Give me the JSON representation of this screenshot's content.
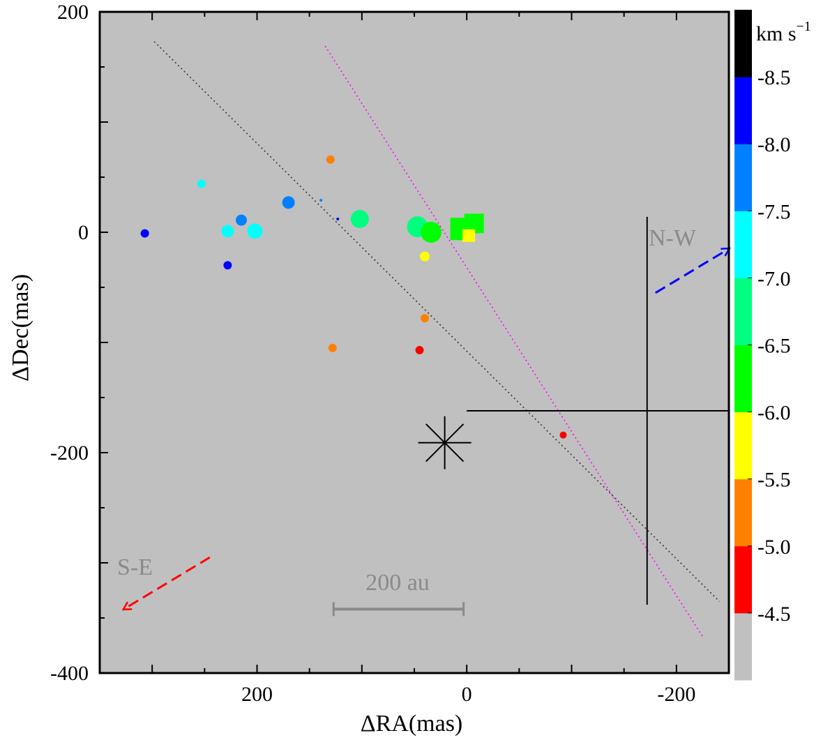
{
  "chart_data": {
    "type": "scatter",
    "xlabel": "ΔRA(mas)",
    "ylabel": "ΔDec(mas)",
    "xlim": [
      350,
      -250
    ],
    "ylim": [
      -400,
      200
    ],
    "x_ticks": [
      200,
      0,
      -200
    ],
    "y_ticks": [
      200,
      0,
      -200,
      -400
    ],
    "x_tick_labels": [
      "200",
      "0",
      "-200"
    ],
    "y_tick_labels": [
      "200",
      "0",
      "-200",
      "-400"
    ],
    "background_color": "#c0c0c0",
    "colorbar": {
      "unit_base": "km s",
      "unit_exp": "−1",
      "levels": [
        -4.5,
        -5.0,
        -5.5,
        -6.0,
        -6.5,
        -7.0,
        -7.5,
        -8.0,
        -8.5
      ],
      "labels": [
        "-4.5",
        "-5.0",
        "-5.5",
        "-6.0",
        "-6.5",
        "-7.0",
        "-7.5",
        "-8.0",
        "-8.5"
      ],
      "bins": [
        {
          "color": "#c0c0c0",
          "label": "< -4.5"
        },
        {
          "color": "#ff0000",
          "label": "-5.0 to -4.5"
        },
        {
          "color": "#ff8000",
          "label": "-5.5 to -5.0"
        },
        {
          "color": "#ffff00",
          "label": "-6.0 to -5.5"
        },
        {
          "color": "#00ff00",
          "label": "-6.5 to -6.0"
        },
        {
          "color": "#00ff80",
          "label": "-7.0 to -6.5"
        },
        {
          "color": "#00ffff",
          "label": "-7.5 to -7.0"
        },
        {
          "color": "#0080ff",
          "label": "-8.0 to -7.5"
        },
        {
          "color": "#0000ff",
          "label": "-8.5 to -8.0"
        },
        {
          "color": "#000000",
          "label": "> -8.5"
        }
      ]
    },
    "spots": [
      {
        "x": 307,
        "y": -1,
        "color": "#0000ff",
        "size": 6
      },
      {
        "x": 253,
        "y": 44,
        "color": "#00ffff",
        "size": 6
      },
      {
        "x": 228,
        "y": 1,
        "color": "#00ffff",
        "size": 9
      },
      {
        "x": 228,
        "y": -30,
        "color": "#0000ff",
        "size": 6
      },
      {
        "x": 215,
        "y": 11,
        "color": "#0080ff",
        "size": 8
      },
      {
        "x": 202,
        "y": 1,
        "color": "#00ffff",
        "size": 11
      },
      {
        "x": 170,
        "y": 27,
        "color": "#0080ff",
        "size": 9
      },
      {
        "x": 139,
        "y": 29,
        "color": "#0080ff",
        "size": 2
      },
      {
        "x": 130,
        "y": 66,
        "color": "#ff8000",
        "size": 6
      },
      {
        "x": 123,
        "y": 12,
        "color": "#0000ff",
        "size": 2
      },
      {
        "x": 102,
        "y": 12,
        "color": "#00ff80",
        "size": 13
      },
      {
        "x": 47,
        "y": 5,
        "color": "#00ff80",
        "size": 15
      },
      {
        "x": 34,
        "y": 0,
        "color": "#00ff00",
        "size": 15
      },
      {
        "x": 40,
        "y": -22,
        "color": "#ffff00",
        "size": 7
      },
      {
        "x": 40,
        "y": -78,
        "color": "#ff8000",
        "size": 6
      },
      {
        "x": 128,
        "y": -105,
        "color": "#ff8000",
        "size": 6
      },
      {
        "x": 45,
        "y": -107,
        "color": "#ff0000",
        "size": 6
      },
      {
        "x": -92,
        "y": -184,
        "color": "#ff0000",
        "size": 5
      }
    ],
    "squares": [
      {
        "x": 5,
        "y": 3,
        "color": "#00ff00",
        "size": 16
      },
      {
        "x": -7,
        "y": 8,
        "color": "#00ff00",
        "size": 14
      },
      {
        "x": -2,
        "y": -3,
        "color": "#ffff00",
        "size": 9
      }
    ],
    "star": {
      "x": 21,
      "y": -191
    },
    "dotted_lines": [
      {
        "name": "black-dotted",
        "color": "#333333",
        "x1": 298,
        "y1": 173,
        "x2": -241,
        "y2": -335
      },
      {
        "name": "magenta-dotted",
        "color": "#ff00ff",
        "x1": 135,
        "y1": 169,
        "x2": -225,
        "y2": -367
      }
    ],
    "reference_cross": {
      "horizontal": {
        "x1": 0,
        "x2": -250,
        "y": -162
      },
      "vertical": {
        "x": -172,
        "y1": 14,
        "y2": -338
      }
    },
    "direction_arrows": [
      {
        "label": "N-W",
        "color": "#0000ff",
        "x1": -180,
        "y1": -55,
        "x2": -250,
        "y2": -15
      },
      {
        "label": "S-E",
        "color": "#ff0000",
        "x1": 245,
        "y1": -295,
        "x2": 327,
        "y2": -342
      }
    ],
    "scale_bar": {
      "label": "200 au",
      "x1": 127,
      "x2": 3,
      "y": -342
    }
  }
}
